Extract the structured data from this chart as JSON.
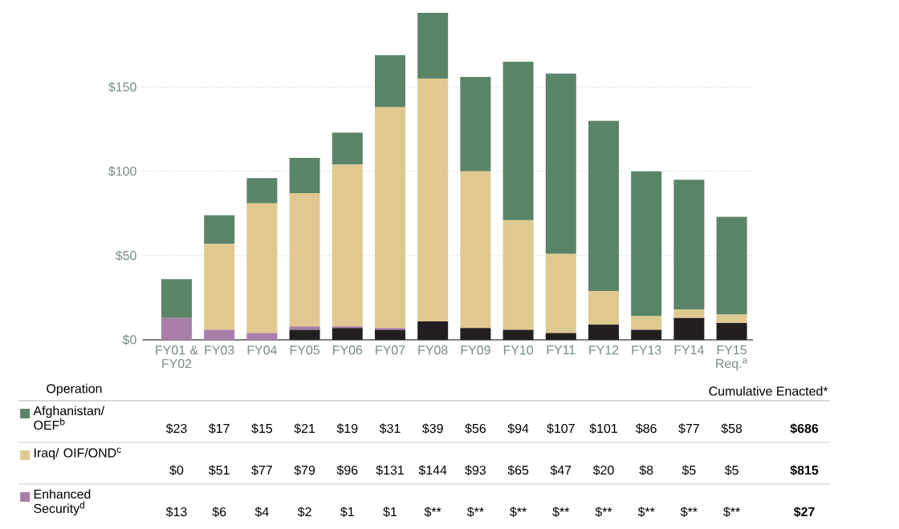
{
  "chart_data": {
    "type": "bar",
    "stacked": true,
    "grid": "y",
    "legend": "bottom",
    "categories": [
      "FY01 & FY02",
      "FY03",
      "FY04",
      "FY05",
      "FY06",
      "FY07",
      "FY08",
      "FY09",
      "FY10",
      "FY11",
      "FY12",
      "FY13",
      "FY14",
      "FY15 Req.$^{a}$"
    ],
    "ylim": [
      0,
      195
    ],
    "yticks": [
      {
        "value": 0,
        "label": "$0"
      },
      {
        "value": 50,
        "label": "$50"
      },
      {
        "value": 100,
        "label": "$100"
      },
      {
        "value": 150,
        "label": "$150"
      }
    ],
    "series": [
      {
        "color": "#231f20",
        "values": [
          0,
          0,
          0,
          6,
          7,
          6,
          11,
          7,
          6,
          4,
          9,
          6,
          13,
          10
        ]
      },
      {
        "name": "Enhanced Security$^{d}$",
        "color": "#a87ea8",
        "values": [
          13,
          6,
          4,
          2,
          1,
          1,
          0,
          0,
          0,
          0,
          0,
          0,
          0,
          0
        ],
        "value_labels": [
          "$13",
          "$6",
          "$4",
          "$2",
          "$1",
          "$1",
          "$**",
          "$**",
          "$**",
          "$**",
          "$**",
          "$**",
          "$**",
          "$**"
        ]
      },
      {
        "name": "Iraq/ OIF/OND$^{c}$",
        "color": "#e0c990",
        "values": [
          0,
          51,
          77,
          79,
          96,
          131,
          144,
          93,
          65,
          47,
          20,
          8,
          5,
          5
        ],
        "value_labels": [
          "$0",
          "$51",
          "$77",
          "$79",
          "$96",
          "$131",
          "$144",
          "$93",
          "$65",
          "$47",
          "$20",
          "$8",
          "$5",
          "$5"
        ]
      },
      {
        "name": "Afghanistan/ OEF$^{b}$",
        "color": "#5a8468",
        "values": [
          23,
          17,
          15,
          21,
          19,
          31,
          39,
          56,
          94,
          107,
          101,
          86,
          77,
          58
        ],
        "value_labels": [
          "$23",
          "$17",
          "$15",
          "$21",
          "$19",
          "$31",
          "$39",
          "$56",
          "$94",
          "$107",
          "$101",
          "$86",
          "$77",
          "$58"
        ]
      }
    ],
    "annotations": [
      "Operation",
      "Cumulative Enacted*",
      "$686",
      "$815",
      "$27"
    ]
  }
}
